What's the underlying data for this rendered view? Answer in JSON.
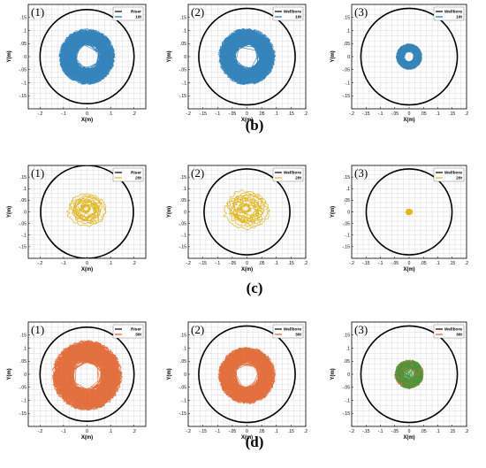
{
  "row_labels": [
    "(b)",
    "(c)",
    "(d)"
  ],
  "chart_data": [
    {
      "type": "scatter",
      "panel_label": "(1)",
      "legend": [
        "Riser",
        "10t"
      ],
      "xlabel": "X(m)",
      "ylabel": "Y(m)",
      "xlim": [
        -0.25,
        0.25
      ],
      "ylim": [
        -0.2,
        0.2
      ],
      "xticks": [
        -0.2,
        -0.1,
        0,
        0.1,
        0.2
      ],
      "yticks": [
        -0.15,
        -0.1,
        -0.05,
        0,
        0.05,
        0.1,
        0.15
      ],
      "boundary_radius": 0.2,
      "trace_radius": 0.12,
      "trace_center": [
        0,
        0
      ],
      "trace_color": "#1f77b4",
      "trace_style": "dense",
      "legend_position": "top-right",
      "grid": true
    },
    {
      "type": "scatter",
      "panel_label": "(2)",
      "legend": [
        "Wellbore",
        "10t"
      ],
      "xlabel": "X(m)",
      "ylabel": "Y(m)",
      "xlim": [
        -0.2,
        0.2
      ],
      "ylim": [
        -0.2,
        0.2
      ],
      "xticks": [
        -0.2,
        -0.15,
        -0.1,
        -0.05,
        0,
        0.05,
        0.1,
        0.15,
        0.2
      ],
      "yticks": [
        -0.15,
        -0.1,
        -0.05,
        0,
        0.05,
        0.1,
        0.15
      ],
      "boundary_radius": 0.185,
      "trace_radius": 0.11,
      "trace_center": [
        0,
        0
      ],
      "trace_color": "#1f77b4",
      "trace_style": "dense",
      "legend_position": "top-right",
      "grid": true
    },
    {
      "type": "scatter",
      "panel_label": "(3)",
      "legend": [
        "Wellbore",
        "10t"
      ],
      "xlabel": "X(m)",
      "ylabel": "Y(m)",
      "xlim": [
        -0.2,
        0.2
      ],
      "ylim": [
        -0.2,
        0.2
      ],
      "xticks": [
        -0.2,
        -0.15,
        -0.1,
        -0.05,
        0,
        0.05,
        0.1,
        0.15,
        0.2
      ],
      "yticks": [
        -0.15,
        -0.1,
        -0.05,
        0,
        0.05,
        0.1,
        0.15
      ],
      "boundary_radius": 0.185,
      "trace_radius": 0.05,
      "trace_center": [
        0,
        0
      ],
      "trace_color": "#1f77b4",
      "trace_style": "dense",
      "legend_position": "top-right",
      "grid": true
    },
    {
      "type": "scatter",
      "panel_label": "(1)",
      "legend": [
        "Riser",
        "20t"
      ],
      "xlabel": "X(m)",
      "ylabel": "Y(m)",
      "xlim": [
        -0.25,
        0.25
      ],
      "ylim": [
        -0.2,
        0.2
      ],
      "xticks": [
        -0.2,
        -0.1,
        0,
        0.1,
        0.2
      ],
      "yticks": [
        -0.15,
        -0.1,
        -0.05,
        0,
        0.05,
        0.1,
        0.15
      ],
      "boundary_radius": 0.2,
      "trace_radius": 0.085,
      "trace_center": [
        0,
        0.01
      ],
      "trace_color": "#e3b51e",
      "trace_style": "loops",
      "legend_position": "top-right",
      "grid": true
    },
    {
      "type": "scatter",
      "panel_label": "(2)",
      "legend": [
        "Wellbore",
        "20t"
      ],
      "xlabel": "X(m)",
      "ylabel": "Y(m)",
      "xlim": [
        -0.2,
        0.2
      ],
      "ylim": [
        -0.2,
        0.2
      ],
      "xticks": [
        -0.2,
        -0.15,
        -0.1,
        -0.05,
        0,
        0.05,
        0.1,
        0.15,
        0.2
      ],
      "yticks": [
        -0.15,
        -0.1,
        -0.05,
        0,
        0.05,
        0.1,
        0.15
      ],
      "boundary_radius": 0.185,
      "trace_radius": 0.1,
      "trace_center": [
        0,
        0.01
      ],
      "trace_color": "#e3b51e",
      "trace_style": "loops",
      "legend_position": "top-right",
      "grid": true
    },
    {
      "type": "scatter",
      "panel_label": "(3)",
      "legend": [
        "Wellbore",
        "20t"
      ],
      "xlabel": "X(m)",
      "ylabel": "Y(m)",
      "xlim": [
        -0.2,
        0.2
      ],
      "ylim": [
        -0.2,
        0.2
      ],
      "xticks": [
        -0.2,
        -0.15,
        -0.1,
        -0.05,
        0,
        0.05,
        0.1,
        0.15,
        0.2
      ],
      "yticks": [
        -0.15,
        -0.1,
        -0.05,
        0,
        0.05,
        0.1,
        0.15
      ],
      "boundary_radius": 0.185,
      "trace_radius": 0.015,
      "trace_center": [
        0,
        0
      ],
      "trace_color": "#e3b51e",
      "trace_style": "loops",
      "legend_position": "top-right",
      "grid": true
    },
    {
      "type": "scatter",
      "panel_label": "(1)",
      "legend": [
        "Riser",
        "30t"
      ],
      "xlabel": "X(m)",
      "ylabel": "Y(m)",
      "xlim": [
        -0.25,
        0.25
      ],
      "ylim": [
        -0.2,
        0.2
      ],
      "xticks": [
        -0.2,
        -0.1,
        0,
        0.1,
        0.2
      ],
      "yticks": [
        -0.15,
        -0.1,
        -0.05,
        0,
        0.05,
        0.1,
        0.15
      ],
      "boundary_radius": 0.2,
      "trace_radius": 0.15,
      "trace_center": [
        0,
        -0.005
      ],
      "trace_color": "#e0612a",
      "trace_style": "dense",
      "legend_position": "top-right",
      "grid": true
    },
    {
      "type": "scatter",
      "panel_label": "(2)",
      "legend": [
        "Wellbore",
        "30t"
      ],
      "xlabel": "X(m)",
      "ylabel": "Y(m)",
      "xlim": [
        -0.2,
        0.2
      ],
      "ylim": [
        -0.2,
        0.2
      ],
      "xticks": [
        -0.2,
        -0.15,
        -0.1,
        -0.05,
        0,
        0.05,
        0.1,
        0.15,
        0.2
      ],
      "yticks": [
        -0.15,
        -0.1,
        -0.05,
        0,
        0.05,
        0.1,
        0.15
      ],
      "boundary_radius": 0.185,
      "trace_radius": 0.11,
      "trace_center": [
        0,
        -0.005
      ],
      "trace_color": "#e0612a",
      "trace_style": "dense",
      "legend_position": "top-right",
      "grid": true
    },
    {
      "type": "scatter",
      "panel_label": "(3)",
      "legend": [
        "Wellbore",
        "30t"
      ],
      "xlabel": "X(m)",
      "ylabel": "Y(m)",
      "xlim": [
        -0.2,
        0.2
      ],
      "ylim": [
        -0.2,
        0.2
      ],
      "xticks": [
        -0.2,
        -0.15,
        -0.1,
        -0.05,
        0,
        0.05,
        0.1,
        0.15,
        0.2
      ],
      "yticks": [
        -0.15,
        -0.1,
        -0.05,
        0,
        0.05,
        0.1,
        0.15
      ],
      "boundary_radius": 0.185,
      "trace_radius": 0.055,
      "trace_center": [
        0,
        0
      ],
      "trace_color": "#e0612a",
      "trace_style": "dense",
      "accent_color": "#3a9a3a",
      "legend_position": "top-right",
      "grid": true
    }
  ]
}
